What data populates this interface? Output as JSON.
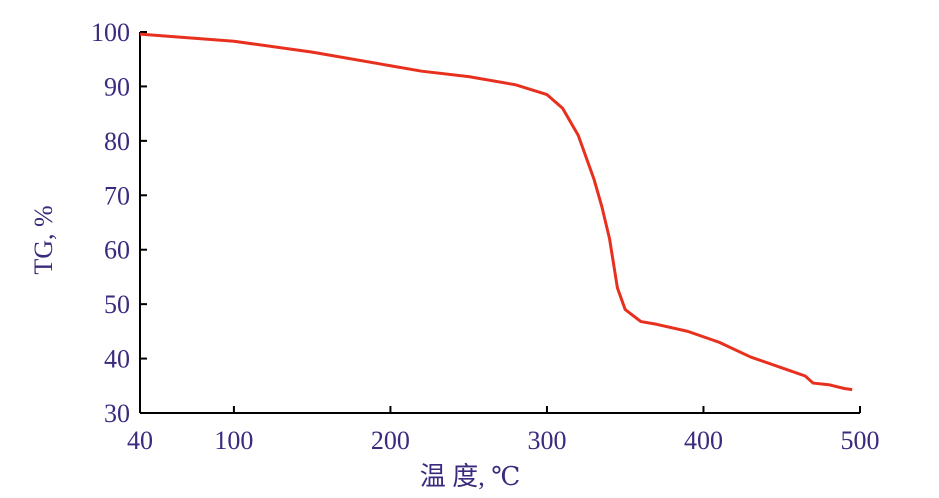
{
  "chart_data": {
    "type": "line",
    "xlabel": "温 度, ℃",
    "ylabel": "TG, %",
    "xlim": [
      40,
      500
    ],
    "xticks": [
      40,
      100,
      200,
      300,
      400,
      500
    ],
    "ylim": [
      30,
      100
    ],
    "yticks": [
      30,
      40,
      50,
      60,
      70,
      80,
      90,
      100
    ],
    "x": [
      40,
      100,
      150,
      200,
      220,
      250,
      280,
      300,
      310,
      320,
      330,
      335,
      340,
      345,
      350,
      360,
      370,
      390,
      410,
      430,
      450,
      465,
      470,
      480,
      490,
      495
    ],
    "series": [
      {
        "color": "#e8301e",
        "values": [
          99.6,
          98.3,
          96.3,
          93.8,
          92.8,
          91.8,
          90.3,
          88.5,
          86,
          81,
          73,
          68,
          62,
          53,
          49,
          46.8,
          46.3,
          45,
          43,
          40.3,
          38.3,
          36.8,
          35.5,
          35.2,
          34.5,
          34.3
        ]
      }
    ]
  }
}
